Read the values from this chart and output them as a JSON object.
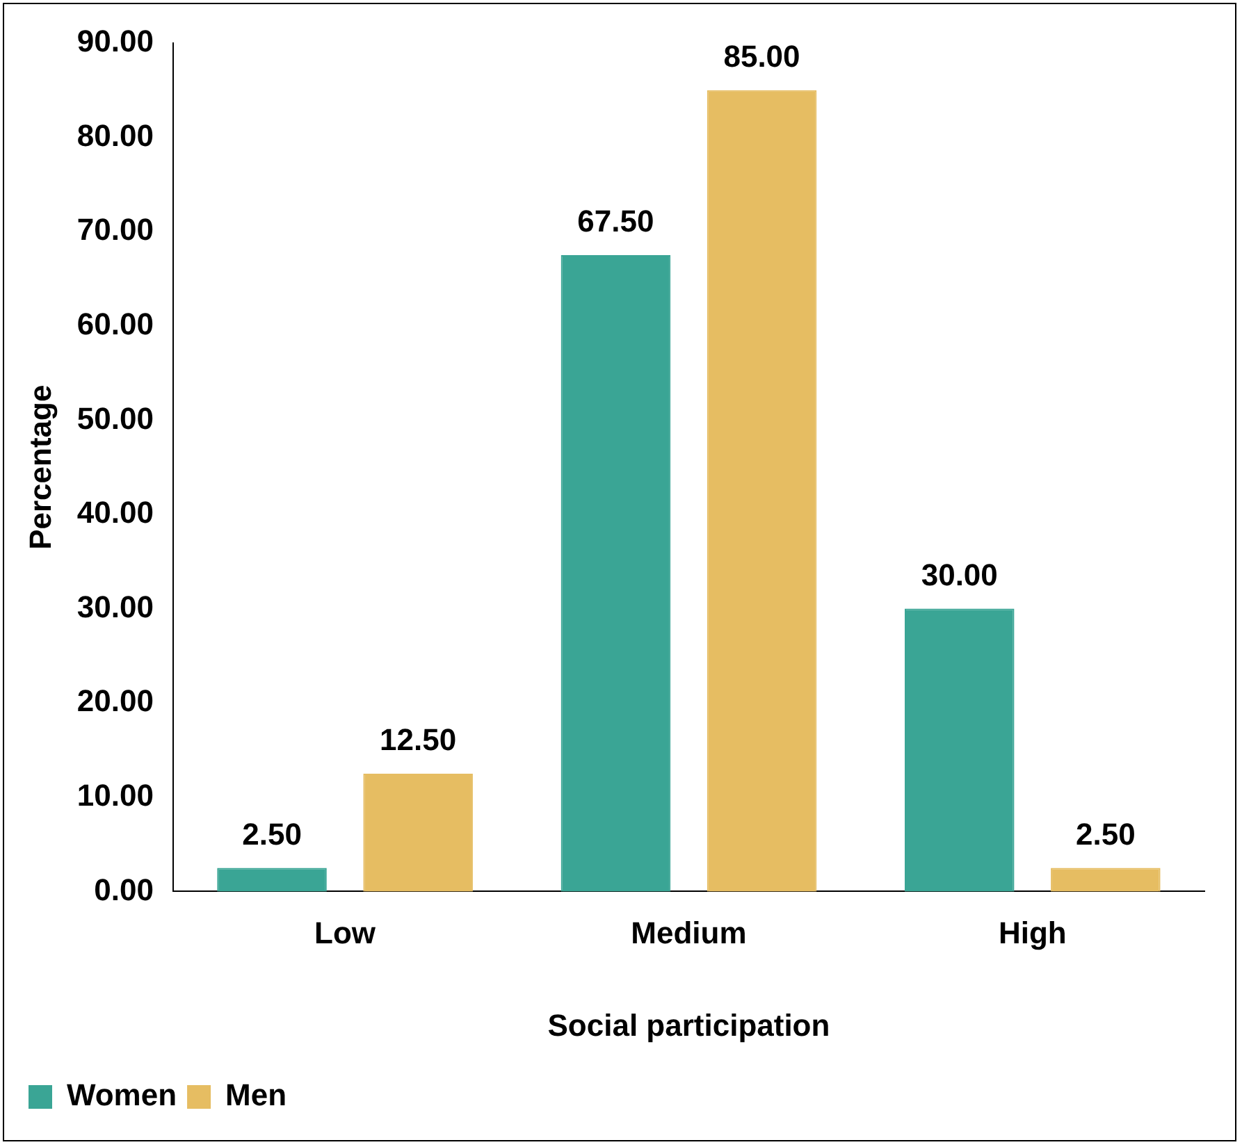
{
  "chart_data": {
    "type": "bar",
    "xlabel": "Social participation",
    "ylabel": "Percentage",
    "categories": [
      "Low",
      "Medium",
      "High"
    ],
    "series": [
      {
        "name": "Women",
        "color": "#3aa595",
        "values": [
          2.5,
          67.5,
          30
        ],
        "value_labels": [
          "2.50",
          "67.50",
          "30.00"
        ]
      },
      {
        "name": "Men",
        "color": "#e6bd62",
        "values": [
          12.5,
          85,
          2.5
        ],
        "value_labels": [
          "12.50",
          "85.00",
          "2.50"
        ]
      }
    ],
    "ylim": [
      0,
      90
    ],
    "yticks": [
      {
        "value": 0,
        "label": "0.00"
      },
      {
        "value": 10,
        "label": "10.00"
      },
      {
        "value": 20,
        "label": "20.00"
      },
      {
        "value": 30,
        "label": "30.00"
      },
      {
        "value": 40,
        "label": "40.00"
      },
      {
        "value": 50,
        "label": "50.00"
      },
      {
        "value": 60,
        "label": "60.00"
      },
      {
        "value": 70,
        "label": "70.00"
      },
      {
        "value": 80,
        "label": "80.00"
      },
      {
        "value": 90,
        "label": "90.00"
      }
    ],
    "grid": false,
    "legend": "bottom left"
  }
}
